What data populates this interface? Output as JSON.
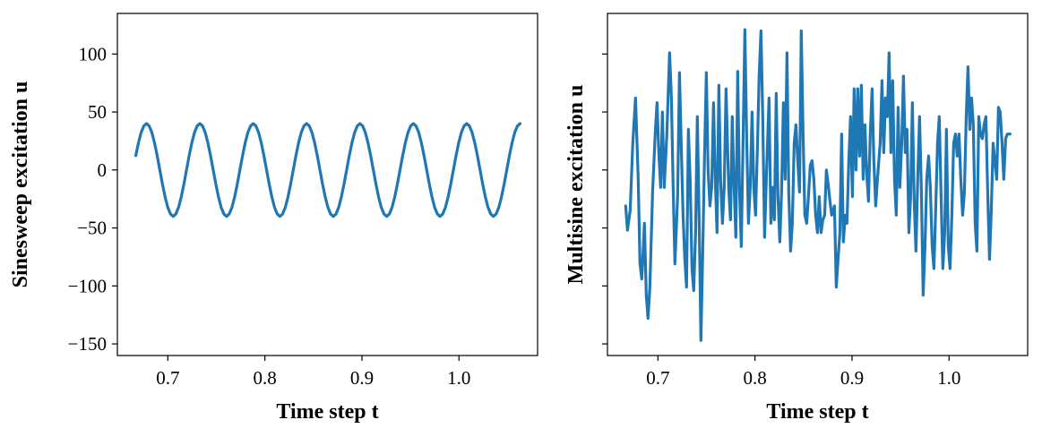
{
  "chart_data": [
    {
      "type": "line",
      "xlabel": "Time step t",
      "ylabel": "Sinesweep excitation u",
      "color": "#1f77b4",
      "xlim": [
        0.648,
        1.081
      ],
      "xticks": [
        0.7,
        0.8,
        0.9,
        {
          "value": 1,
          "label": "1.0"
        }
      ],
      "ylim": [
        -160,
        135
      ],
      "yticks": [
        {
          "value": -150,
          "label": "−150"
        },
        {
          "value": -100,
          "label": "−100"
        },
        {
          "value": -50,
          "label": "−50"
        },
        0,
        50,
        100
      ],
      "show_ytick_labels": true,
      "x": [
        0.667,
        0.66975,
        0.6725,
        0.67525,
        0.678,
        0.68075,
        0.6835,
        0.68625,
        0.689,
        0.69175,
        0.6945,
        0.69725,
        0.7,
        0.70275,
        0.7055,
        0.70825,
        0.711,
        0.71375,
        0.7165,
        0.71925,
        0.722,
        0.72475,
        0.7275,
        0.73025,
        0.733,
        0.73575,
        0.7385,
        0.74125,
        0.744,
        0.74675,
        0.7495,
        0.75225,
        0.755,
        0.75775,
        0.7605,
        0.76325,
        0.766,
        0.76875,
        0.7715,
        0.77425,
        0.777,
        0.77975,
        0.7825,
        0.78525,
        0.788,
        0.79075,
        0.7935,
        0.79625,
        0.799,
        0.80175,
        0.8045,
        0.80725,
        0.81,
        0.81275,
        0.8155,
        0.81825,
        0.821,
        0.82375,
        0.8265,
        0.82925,
        0.832,
        0.83475,
        0.8375,
        0.84025,
        0.843,
        0.84575,
        0.8485,
        0.85125,
        0.854,
        0.85675,
        0.8595,
        0.86225,
        0.865,
        0.86775,
        0.8705,
        0.87325,
        0.876,
        0.87875,
        0.8815,
        0.88425,
        0.887,
        0.88975,
        0.8925,
        0.89525,
        0.898,
        0.90075,
        0.9035,
        0.90625,
        0.909,
        0.91175,
        0.9145,
        0.91725,
        0.92,
        0.92275,
        0.9255,
        0.92825,
        0.931,
        0.93375,
        0.9365,
        0.93925,
        0.942,
        0.94475,
        0.9475,
        0.95025,
        0.953,
        0.95575,
        0.9585,
        0.96125,
        0.964,
        0.96675,
        0.9695,
        0.97225,
        0.975,
        0.97775,
        0.9805,
        0.98325,
        0.986,
        0.98875,
        0.9915,
        0.99425,
        0.997,
        0.99975,
        1.0025,
        1.00525,
        1.008,
        1.01075,
        1.0135,
        1.01625,
        1.019,
        1.02175,
        1.0245,
        1.02725,
        1.03,
        1.03275,
        1.0355,
        1.03825,
        1.041,
        1.04375,
        1.0465,
        1.04925,
        1.052,
        1.05475,
        1.0575,
        1.06025,
        1.063
      ],
      "values": [
        12.4,
        23.5,
        32.4,
        38,
        40,
        38,
        32.4,
        23.5,
        12.4,
        0,
        -12.4,
        -23.5,
        -32.4,
        -38,
        -40,
        -38,
        -32.4,
        -23.5,
        -12.4,
        0,
        12.4,
        23.5,
        32.4,
        38,
        40,
        38,
        32.4,
        23.5,
        12.4,
        0,
        -12.4,
        -23.5,
        -32.4,
        -38,
        -40,
        -38,
        -32.4,
        -23.5,
        -12.4,
        0,
        12.4,
        23.5,
        32.4,
        38,
        40,
        38,
        32.4,
        23.5,
        12.4,
        0,
        -12.4,
        -23.5,
        -32.4,
        -38,
        -40,
        -38,
        -32.4,
        -23.5,
        -12.4,
        0,
        12.4,
        23.5,
        32.4,
        38,
        40,
        38,
        32.4,
        23.5,
        12.4,
        0,
        -12.4,
        -23.5,
        -32.4,
        -38,
        -40,
        -38,
        -32.4,
        -23.5,
        -12.4,
        0,
        12.4,
        23.5,
        32.4,
        38,
        40,
        38,
        32.4,
        23.5,
        12.4,
        0,
        -12.4,
        -23.5,
        -32.4,
        -38,
        -40,
        -38,
        -32.4,
        -23.5,
        -12.4,
        0,
        12.4,
        23.5,
        32.4,
        38,
        40,
        38,
        32.4,
        23.5,
        12.4,
        0,
        -12.4,
        -23.5,
        -32.4,
        -38,
        -40,
        -38,
        -32.4,
        -23.5,
        -12.4,
        0,
        12.4,
        23.5,
        32.4,
        38,
        40,
        38,
        32.4,
        23.5,
        12.4,
        0,
        -12.4,
        -23.5,
        -32.4,
        -38,
        -40,
        -38,
        -32.4,
        -23.5,
        -12.4,
        0,
        12.4,
        23.5,
        32.4,
        38,
        40
      ]
    },
    {
      "type": "line",
      "xlabel": "Time step t",
      "ylabel": "Multisine excitation u",
      "color": "#1f77b4",
      "xlim": [
        0.648,
        1.081
      ],
      "xticks": [
        0.7,
        0.8,
        0.9,
        {
          "value": 1,
          "label": "1.0"
        }
      ],
      "ylim": [
        -160,
        135
      ],
      "yticks": [
        -150,
        -100,
        -50,
        0,
        50,
        100
      ],
      "show_ytick_labels": false,
      "x": [
        0.6668,
        0.6686,
        0.6714,
        0.6741,
        0.6769,
        0.6797,
        0.6815,
        0.6834,
        0.6861,
        0.688,
        0.6898,
        0.6917,
        0.6945,
        0.6972,
        0.6991,
        0.7009,
        0.7028,
        0.7046,
        0.7065,
        0.7092,
        0.712,
        0.7139,
        0.7157,
        0.7175,
        0.7203,
        0.7222,
        0.724,
        0.7259,
        0.7277,
        0.7295,
        0.7314,
        0.7332,
        0.7351,
        0.7369,
        0.7388,
        0.7406,
        0.7425,
        0.7443,
        0.7462,
        0.748,
        0.7499,
        0.7517,
        0.7536,
        0.7554,
        0.7573,
        0.7591,
        0.7609,
        0.7628,
        0.7646,
        0.7665,
        0.7683,
        0.7702,
        0.7729,
        0.7748,
        0.7766,
        0.7785,
        0.7803,
        0.7822,
        0.784,
        0.7859,
        0.7877,
        0.7896,
        0.7914,
        0.7933,
        0.7951,
        0.797,
        0.7988,
        0.8006,
        0.8025,
        0.8043,
        0.8062,
        0.808,
        0.8099,
        0.8117,
        0.8145,
        0.8164,
        0.8182,
        0.82,
        0.8219,
        0.8237,
        0.8256,
        0.8274,
        0.8293,
        0.8311,
        0.833,
        0.8348,
        0.8367,
        0.8385,
        0.8404,
        0.8422,
        0.8441,
        0.8459,
        0.8477,
        0.8496,
        0.8514,
        0.8533,
        0.8551,
        0.857,
        0.8588,
        0.8607,
        0.8625,
        0.8644,
        0.8662,
        0.8681,
        0.8699,
        0.8718,
        0.8736,
        0.8754,
        0.8773,
        0.8791,
        0.8819,
        0.8838,
        0.8856,
        0.8875,
        0.8893,
        0.8911,
        0.893,
        0.8948,
        0.8967,
        0.8985,
        0.9004,
        0.9022,
        0.9041,
        0.9059,
        0.9078,
        0.9096,
        0.9115,
        0.9133,
        0.9152,
        0.917,
        0.9188,
        0.9207,
        0.9225,
        0.9244,
        0.9262,
        0.929,
        0.9309,
        0.9327,
        0.9345,
        0.9364,
        0.9382,
        0.9401,
        0.9419,
        0.9438,
        0.9456,
        0.9475,
        0.9493,
        0.9512,
        0.953,
        0.9549,
        0.9567,
        0.9586,
        0.9604,
        0.9622,
        0.9641,
        0.9659,
        0.9678,
        0.9696,
        0.9715,
        0.9733,
        0.9752,
        0.977,
        0.9789,
        0.9807,
        0.9826,
        0.9844,
        0.9862,
        0.9881,
        0.9899,
        0.9918,
        0.9936,
        0.9955,
        0.9973,
        0.9992,
        1.001,
        1.0029,
        1.0047,
        1.0066,
        1.0084,
        1.0103,
        1.0121,
        1.014,
        1.0158,
        1.0177,
        1.0195,
        1.0214,
        1.0232,
        1.025,
        1.0269,
        1.0287,
        1.0306,
        1.0324,
        1.0343,
        1.0361,
        1.038,
        1.0398,
        1.0417,
        1.0435,
        1.0454,
        1.0472,
        1.0491,
        1.0509,
        1.0527,
        1.0546,
        1.0564,
        1.0583,
        1.0601,
        1.0629
      ],
      "values": [
        -31,
        -52,
        -35,
        23,
        62,
        -8,
        -81,
        -94,
        -46,
        -108,
        -128,
        -101,
        -19,
        31,
        58,
        15,
        -15,
        50,
        -15,
        31,
        101,
        62,
        -15,
        -81,
        -23,
        84,
        23,
        -39,
        -77,
        -101,
        35,
        -8,
        -85,
        -104,
        -54,
        46,
        -43,
        -147,
        -70,
        12,
        84,
        0,
        -31,
        -15,
        58,
        -8,
        -54,
        73,
        -8,
        -46,
        -15,
        70,
        -15,
        -43,
        46,
        -15,
        -58,
        85,
        -15,
        -66,
        23,
        121,
        31,
        -46,
        -15,
        50,
        -15,
        -39,
        19,
        81,
        120,
        46,
        -58,
        -8,
        62,
        -46,
        -15,
        -43,
        66,
        -23,
        -62,
        -19,
        58,
        -8,
        101,
        -19,
        -70,
        -46,
        23,
        39,
        8,
        -19,
        120,
        31,
        -39,
        -46,
        -23,
        4,
        8,
        -8,
        -39,
        -54,
        -23,
        -54,
        -43,
        -39,
        0,
        -12,
        -27,
        -39,
        -31,
        -101,
        -77,
        -54,
        31,
        -62,
        -39,
        -46,
        8,
        46,
        -23,
        70,
        0,
        70,
        12,
        73,
        -8,
        39,
        -4,
        -27,
        31,
        70,
        8,
        -31,
        -8,
        23,
        77,
        15,
        62,
        46,
        101,
        15,
        77,
        -8,
        -39,
        54,
        -15,
        23,
        81,
        15,
        35,
        -54,
        -23,
        58,
        -27,
        -70,
        -4,
        46,
        -19,
        -108,
        -66,
        -8,
        12,
        -15,
        -66,
        -85,
        -35,
        23,
        46,
        -23,
        -85,
        -54,
        35,
        -66,
        -85,
        -39,
        23,
        31,
        12,
        31,
        -8,
        -39,
        -19,
        46,
        89,
        35,
        62,
        39,
        -46,
        -70,
        46,
        31,
        27,
        39,
        46,
        -19,
        -77,
        -35,
        23,
        8,
        -8,
        54,
        50,
        23,
        -8,
        27,
        31,
        31
      ]
    }
  ]
}
